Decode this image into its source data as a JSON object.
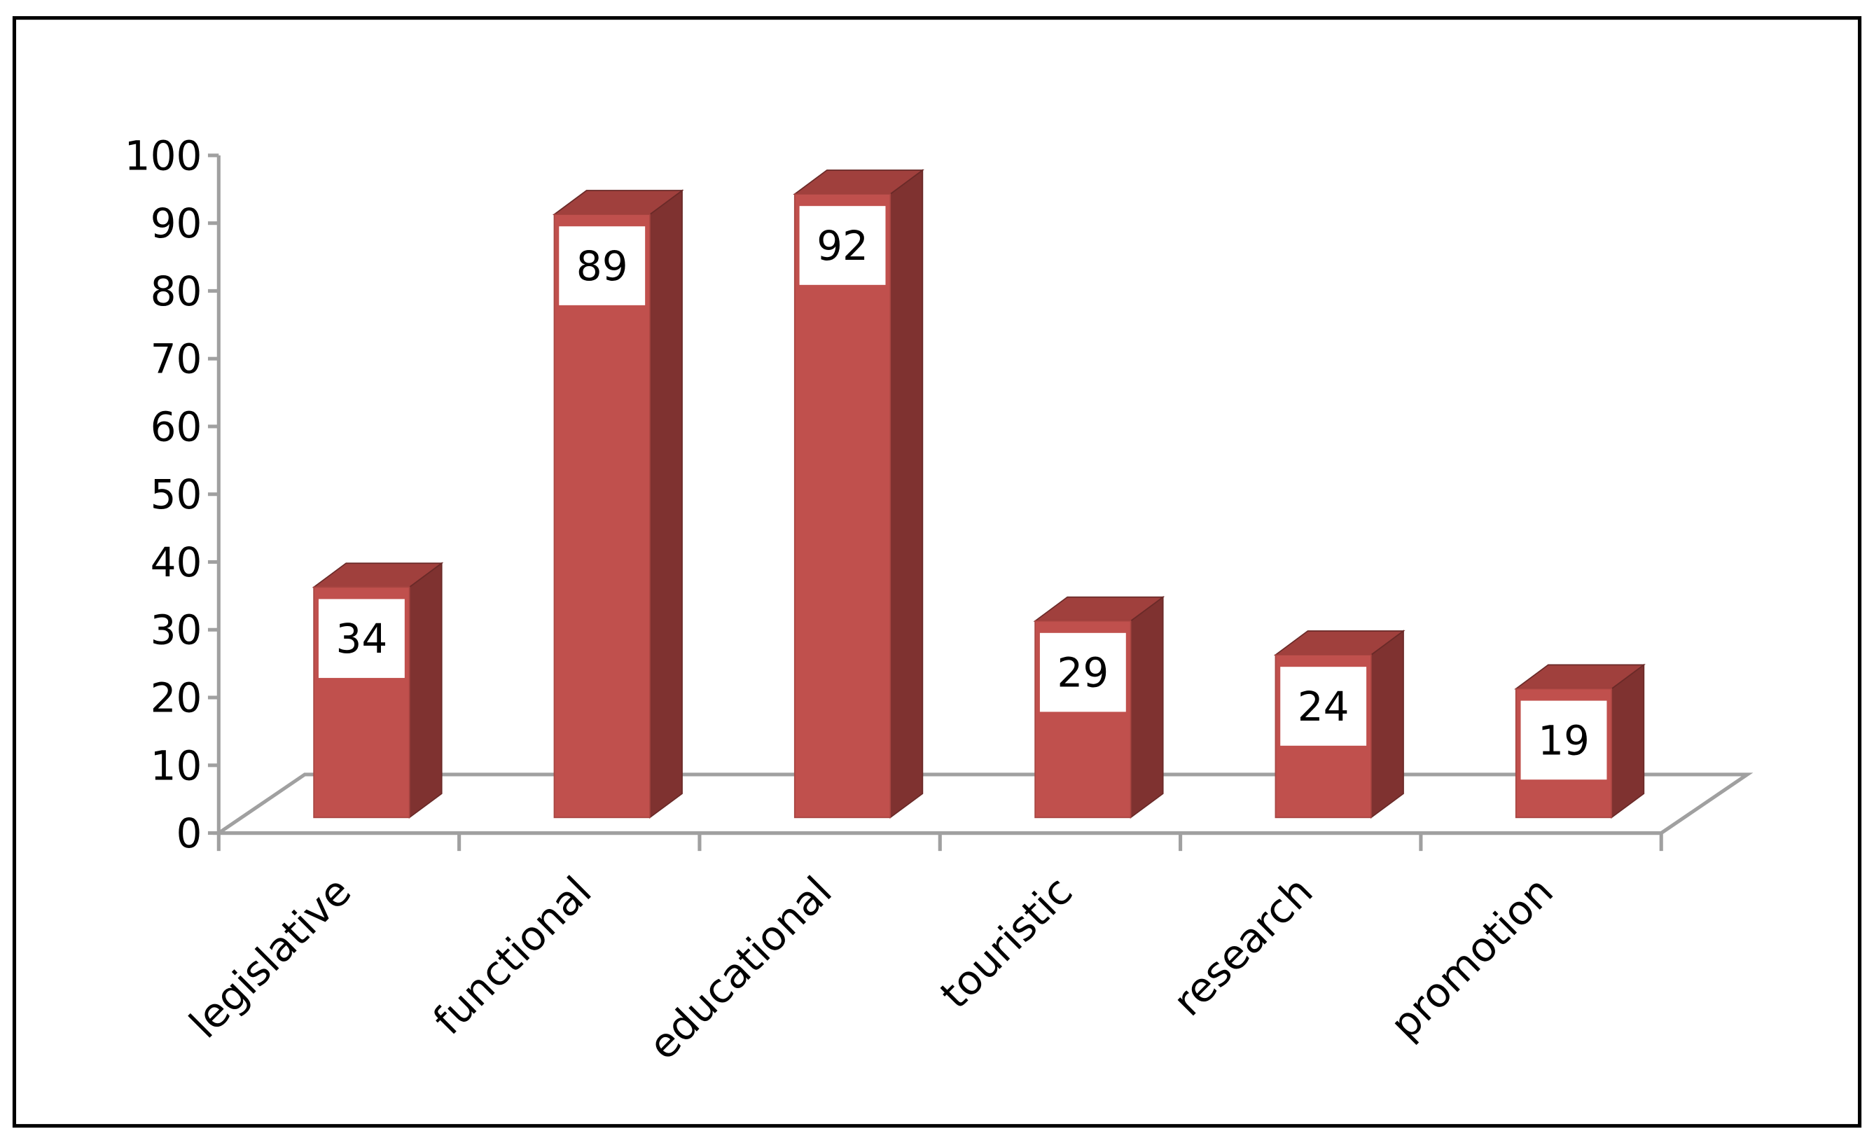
{
  "chart_data": {
    "type": "bar3d",
    "categories": [
      "legislative",
      "functional",
      "educational",
      "touristic",
      "research",
      "promotion"
    ],
    "values": [
      34,
      89,
      92,
      29,
      24,
      19
    ],
    "color": "#c0504d",
    "ylim": [
      0,
      100
    ],
    "yticks": [
      0,
      10,
      20,
      30,
      40,
      50,
      60,
      70,
      80,
      90,
      100
    ]
  }
}
